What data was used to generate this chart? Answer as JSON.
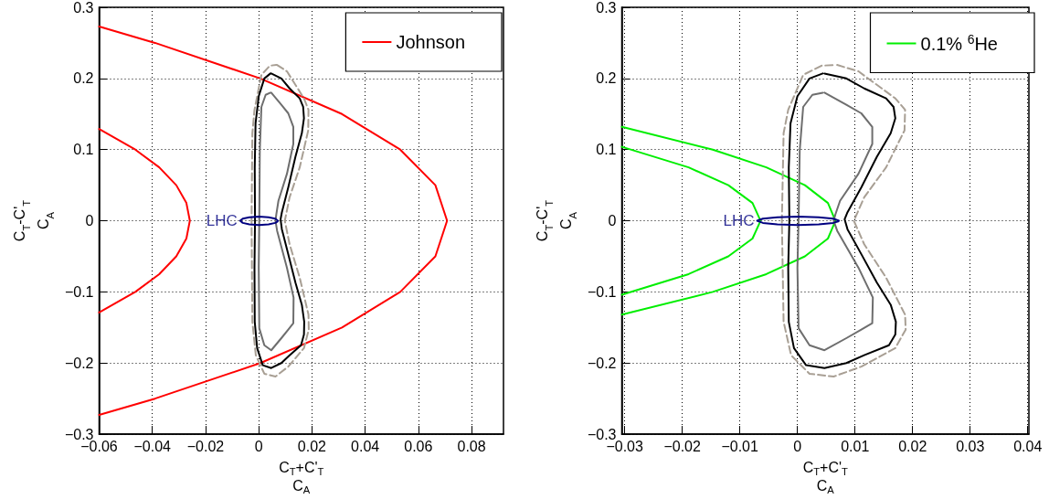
{
  "chart_data": [
    {
      "type": "line",
      "xlabel": "C$_{T}$+C'$_{T}$\nC$_{A}$",
      "ylabel": "C$_{T}$-C'$_{T}$\nC$_{A}$",
      "xlim": [
        -0.06,
        0.092
      ],
      "xticks": [
        -0.06,
        -0.04,
        -0.02,
        0,
        0.02,
        0.04,
        0.06,
        0.08
      ],
      "ylim": [
        -0.3,
        0.3
      ],
      "yticks": [
        -0.3,
        -0.2,
        -0.1,
        0,
        0.1,
        0.2,
        0.3
      ],
      "grid": true,
      "legend": "top right",
      "marker": "none",
      "annotations": [
        {
          "text": "LHC",
          "x": -0.007,
          "y": 0
        }
      ],
      "series": [
        {
          "name": "Johnson",
          "color": "#ff0000",
          "x": [
            -0.06,
            -0.039,
            0.0006,
            0.0313,
            0.0532,
            0.0664,
            0.0708,
            0.0664,
            0.0532,
            0.0313,
            0.0006,
            -0.039,
            -0.06
          ],
          "values": [
            0.273,
            0.25,
            0.2,
            0.15,
            0.1,
            0.05,
            0,
            -0.05,
            -0.1,
            -0.15,
            -0.2,
            -0.25,
            -0.273
          ]
        },
        {
          "color": "#ff0000",
          "x": [
            -0.06,
            -0.0464,
            -0.0374,
            -0.031,
            -0.0272,
            -0.0259,
            -0.0272,
            -0.031,
            -0.0374,
            -0.0464,
            -0.06
          ],
          "values": [
            0.129,
            0.1,
            0.075,
            0.05,
            0.025,
            0,
            -0.025,
            -0.05,
            -0.075,
            -0.1,
            -0.129
          ]
        },
        {
          "color": "#a89f94",
          "line_style": "dashed",
          "x": [
            0.0069,
            0.0106,
            0.017,
            0.0187,
            0.0186,
            0.0154,
            0.0116,
            0.0098,
            0.0116,
            0.0154,
            0.0187,
            0.0188,
            0.017,
            0.0111,
            0.0063,
            0.0021,
            -0.0011,
            -0.0024,
            -0.0027,
            -0.0024,
            -0.0016,
            0.001,
            0.0042,
            0.0066
          ],
          "values": [
            0.219,
            0.21,
            0.172,
            0.156,
            0.127,
            0.075,
            0.033,
            0,
            -0.033,
            -0.08,
            -0.132,
            -0.153,
            -0.179,
            -0.205,
            -0.219,
            -0.215,
            -0.189,
            -0.142,
            0,
            0.123,
            0.156,
            0.205,
            0.218,
            0.219
          ]
        },
        {
          "color": "#000000",
          "x": [
            0.0047,
            0.0085,
            0.0116,
            0.0154,
            0.0167,
            0.017,
            0.0162,
            0.0138,
            0.0111,
            0.0087,
            0.0082,
            0.0087,
            0.0111,
            0.0138,
            0.0162,
            0.0171,
            0.017,
            0.0159,
            0.0116,
            0.0085,
            0.0047,
            0.0015,
            -0.0006,
            -0.0015,
            -0.0016,
            -0.0014,
            -0.0015,
            -0.0012,
            0,
            0.0021,
            0.0044
          ],
          "values": [
            0.207,
            0.2,
            0.186,
            0.172,
            0.16,
            0.144,
            0.123,
            0.09,
            0.047,
            0.012,
            0.002,
            -0.012,
            -0.047,
            -0.087,
            -0.118,
            -0.142,
            -0.16,
            -0.175,
            -0.189,
            -0.2,
            -0.207,
            -0.203,
            -0.179,
            -0.142,
            -0.066,
            0,
            0.075,
            0.137,
            0.175,
            0.2,
            0.207
          ]
        },
        {
          "color": "#6e6e6e",
          "x": [
            0.0047,
            0.0085,
            0.0111,
            0.013,
            0.013,
            0.0106,
            0.0074,
            0.0066,
            0.0063,
            0.0069,
            0.0106,
            0.0131,
            0.013,
            0.0111,
            0.0085,
            0.0047,
            0.0021,
            0.0002,
            0,
            0.0002,
            0.0004,
            0.001,
            0.0026,
            0.0044
          ],
          "values": [
            0.18,
            0.163,
            0.151,
            0.132,
            0.108,
            0.066,
            0.028,
            0.009,
            0,
            -0.014,
            -0.066,
            -0.108,
            -0.144,
            -0.153,
            -0.165,
            -0.182,
            -0.175,
            -0.151,
            -0.066,
            0,
            0.099,
            0.16,
            0.177,
            0.18
          ]
        },
        {
          "color": "#000080",
          "x": [
            0.0072,
            0.0062,
            0.0037,
            0.0001,
            -0.0035,
            -0.006,
            -0.007,
            -0.006,
            -0.0035,
            0.0001,
            0.0037,
            0.0062,
            0.0071
          ],
          "values": [
            0,
            0.003,
            0.005,
            0.006,
            0.005,
            0.003,
            0,
            -0.003,
            -0.005,
            -0.006,
            -0.005,
            -0.003,
            -0.001
          ]
        }
      ]
    },
    {
      "type": "line",
      "xlabel": "C$_{T}$+C'$_{T}$\nC$_{A}$",
      "ylabel": "C$_{T}$-C'$_{T}$\nC$_{A}$",
      "xlim": [
        -0.0305,
        0.0402
      ],
      "xticks": [
        -0.03,
        -0.02,
        -0.01,
        0,
        0.01,
        0.02,
        0.03,
        0.04
      ],
      "ylim": [
        -0.3,
        0.3
      ],
      "yticks": [
        -0.3,
        -0.2,
        -0.1,
        0,
        0.1,
        0.2,
        0.3
      ],
      "grid": true,
      "legend": "top right",
      "marker": "none",
      "annotations": [
        {
          "text": "LHC",
          "x": -0.007,
          "y": 0
        }
      ],
      "series": [
        {
          "name": "0.1% $^{6}$He",
          "color": "#00ee00",
          "x": [
            -0.0305,
            -0.0147,
            -0.0054,
            0.0013,
            0.0053,
            0.0066,
            0.0053,
            0.0013,
            -0.0054,
            -0.0147,
            -0.0305
          ],
          "values": [
            0.132,
            0.1,
            0.075,
            0.05,
            0.025,
            0,
            -0.025,
            -0.05,
            -0.075,
            -0.1,
            -0.132
          ]
        },
        {
          "color": "#00ee00",
          "x": [
            -0.0305,
            -0.0189,
            -0.012,
            -0.0078,
            -0.0064,
            -0.0078,
            -0.012,
            -0.0189,
            -0.0305
          ],
          "values": [
            0.104,
            0.075,
            0.05,
            0.025,
            0,
            -0.025,
            -0.05,
            -0.075,
            -0.104
          ]
        },
        {
          "color": "#a89f94",
          "line_style": "dashed",
          "x": [
            0.0069,
            0.0106,
            0.017,
            0.0187,
            0.0186,
            0.0154,
            0.0116,
            0.0098,
            0.0116,
            0.0154,
            0.0187,
            0.0188,
            0.017,
            0.0111,
            0.0063,
            0.0021,
            -0.0011,
            -0.0024,
            -0.0027,
            -0.0024,
            -0.0016,
            0.001,
            0.0042,
            0.0066
          ],
          "values": [
            0.219,
            0.21,
            0.172,
            0.156,
            0.127,
            0.075,
            0.033,
            0,
            -0.033,
            -0.08,
            -0.132,
            -0.153,
            -0.179,
            -0.205,
            -0.219,
            -0.215,
            -0.189,
            -0.142,
            0,
            0.123,
            0.156,
            0.205,
            0.218,
            0.219
          ]
        },
        {
          "color": "#000000",
          "x": [
            0.0047,
            0.0085,
            0.0116,
            0.0154,
            0.0167,
            0.017,
            0.0162,
            0.0138,
            0.0111,
            0.0087,
            0.0082,
            0.0087,
            0.0111,
            0.0138,
            0.0162,
            0.0171,
            0.017,
            0.0159,
            0.0116,
            0.0085,
            0.0047,
            0.0015,
            -0.0006,
            -0.0015,
            -0.0016,
            -0.0014,
            -0.0015,
            -0.0012,
            0,
            0.0021,
            0.0044
          ],
          "values": [
            0.207,
            0.2,
            0.186,
            0.172,
            0.16,
            0.144,
            0.123,
            0.09,
            0.047,
            0.012,
            0.002,
            -0.012,
            -0.047,
            -0.087,
            -0.118,
            -0.142,
            -0.16,
            -0.175,
            -0.189,
            -0.2,
            -0.207,
            -0.203,
            -0.179,
            -0.142,
            -0.066,
            0,
            0.075,
            0.137,
            0.175,
            0.2,
            0.207
          ]
        },
        {
          "color": "#6e6e6e",
          "x": [
            0.0047,
            0.0085,
            0.0111,
            0.013,
            0.013,
            0.0106,
            0.0074,
            0.0066,
            0.0063,
            0.0069,
            0.0106,
            0.0131,
            0.013,
            0.0111,
            0.0085,
            0.0047,
            0.0021,
            0.0002,
            0,
            0.0002,
            0.0004,
            0.001,
            0.0026,
            0.0044
          ],
          "values": [
            0.18,
            0.163,
            0.151,
            0.132,
            0.108,
            0.066,
            0.028,
            0.009,
            0,
            -0.014,
            -0.066,
            -0.108,
            -0.144,
            -0.153,
            -0.165,
            -0.182,
            -0.175,
            -0.151,
            -0.066,
            0,
            0.099,
            0.16,
            0.177,
            0.18
          ]
        },
        {
          "color": "#000080",
          "x": [
            0.0072,
            0.0062,
            0.0037,
            0.0001,
            -0.0035,
            -0.006,
            -0.007,
            -0.006,
            -0.0035,
            0.0001,
            0.0037,
            0.0062,
            0.0071
          ],
          "values": [
            0,
            0.003,
            0.005,
            0.006,
            0.005,
            0.003,
            0,
            -0.003,
            -0.005,
            -0.006,
            -0.005,
            -0.003,
            -0.001
          ]
        }
      ]
    }
  ]
}
